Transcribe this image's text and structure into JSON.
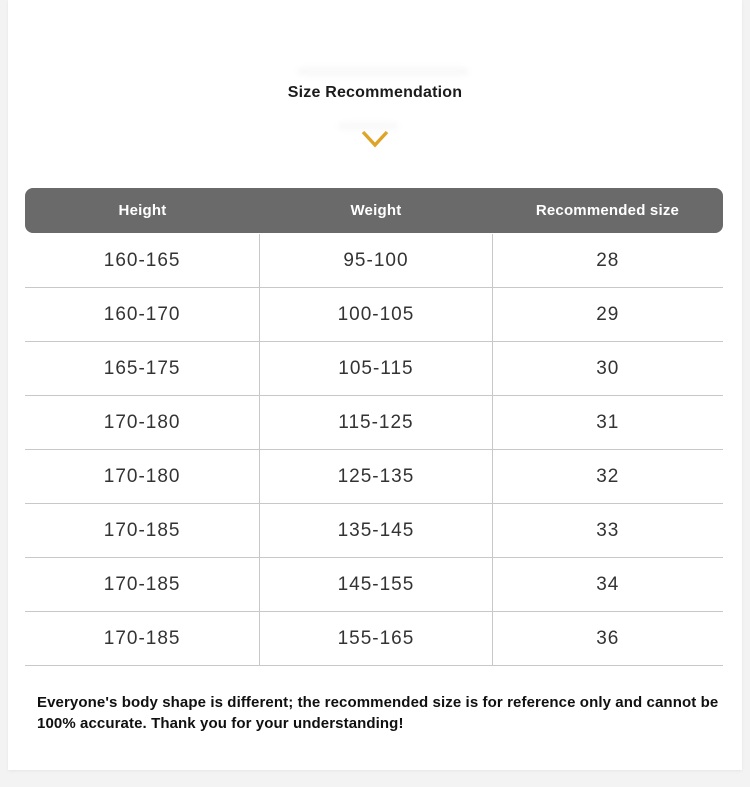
{
  "page": {
    "background_color": "#f3f3f3",
    "card_color": "#ffffff"
  },
  "header": {
    "title": "Size Recommendation"
  },
  "chevron_icon": {
    "glyph": "chevron-down",
    "color": "#dda428"
  },
  "size_table": {
    "header_background": "#6a6a6a",
    "header_text_color": "#ffffff",
    "divider_color": "#c8c8c8",
    "columns": [
      "Height",
      "Weight",
      "Recommended size"
    ],
    "rows": [
      [
        "160-165",
        "95-100",
        "28"
      ],
      [
        "160-170",
        "100-105",
        "29"
      ],
      [
        "165-175",
        "105-115",
        "30"
      ],
      [
        "170-180",
        "115-125",
        "31"
      ],
      [
        "170-180",
        "125-135",
        "32"
      ],
      [
        "170-185",
        "135-145",
        "33"
      ],
      [
        "170-185",
        "145-155",
        "34"
      ],
      [
        "170-185",
        "155-165",
        "36"
      ]
    ]
  },
  "disclaimer": "Everyone's body shape is different; the recommended size is for reference only and cannot be 100% accurate. Thank you for your understanding!"
}
